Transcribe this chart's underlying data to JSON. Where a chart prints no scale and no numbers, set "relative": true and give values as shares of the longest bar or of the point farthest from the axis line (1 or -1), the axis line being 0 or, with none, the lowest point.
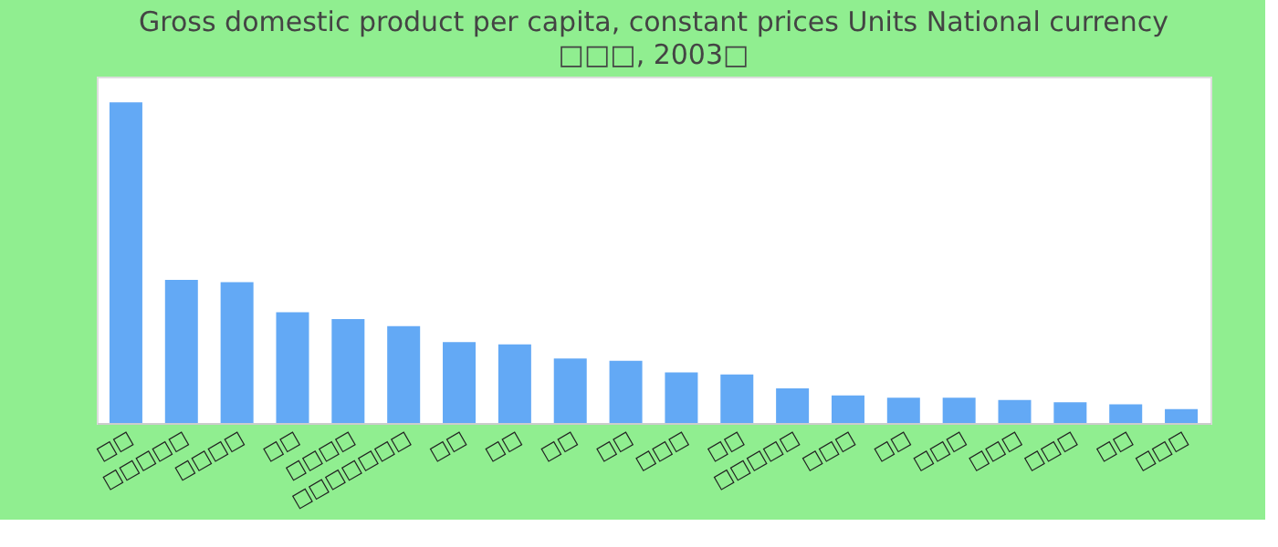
{
  "chart_data": {
    "type": "bar",
    "title": "Gross domestic product per capita, constant prices Units National currency",
    "subtitle": "□□□, 2003□",
    "categories": [
      "□□",
      "□□□□□",
      "□□□□",
      "□□",
      "□□□□",
      "□□□□□□□",
      "□□",
      "□□",
      "□□",
      "□□",
      "□□□",
      "□□",
      "□□□□□",
      "□□□",
      "□□",
      "□□□",
      "□□□",
      "□□□",
      "□□",
      "□□□"
    ],
    "values": [
      1.0,
      0.446,
      0.439,
      0.345,
      0.324,
      0.302,
      0.252,
      0.245,
      0.201,
      0.194,
      0.158,
      0.151,
      0.108,
      0.086,
      0.079,
      0.079,
      0.072,
      0.065,
      0.058,
      0.043
    ],
    "color": "#63a9f5",
    "relative": true
  }
}
